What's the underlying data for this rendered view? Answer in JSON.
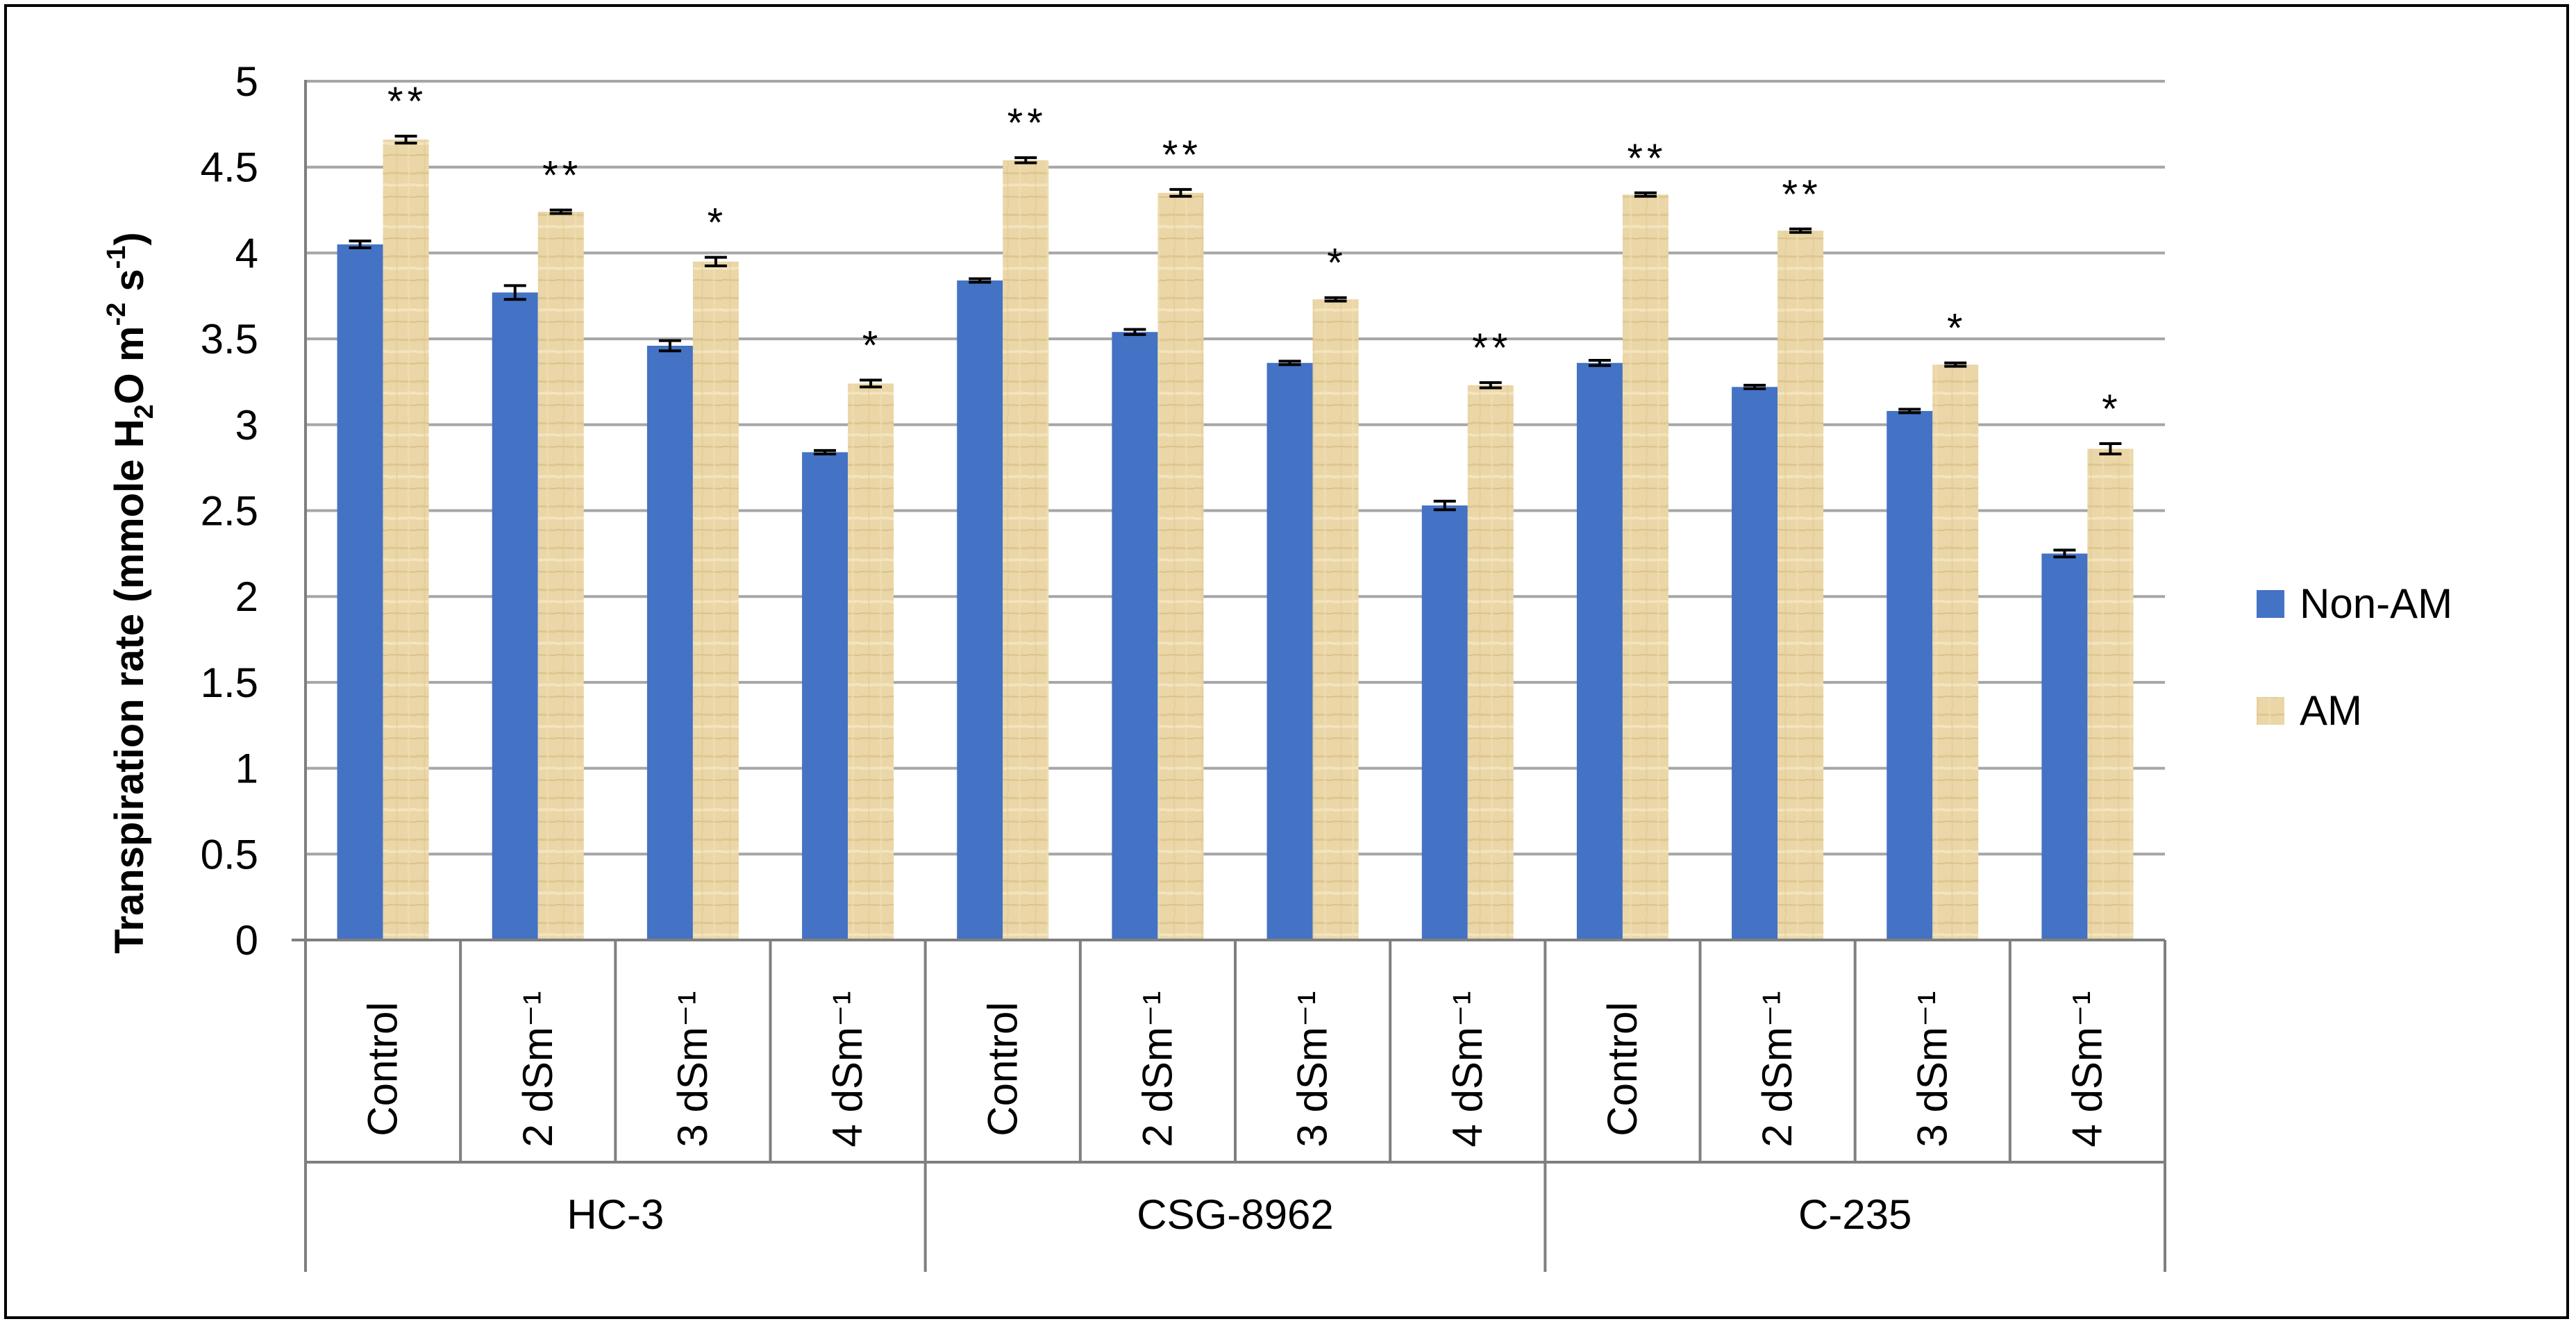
{
  "chart_data": {
    "type": "bar",
    "title": "",
    "ylabel": "Transpiration rate (mmole H2O m-2 s-1)",
    "ylabel_parts": {
      "prefix": "Transpiration rate (mmole H",
      "sub": "2",
      "mid1": "O m",
      "sup1": "-2",
      "mid2": " s",
      "sup2": "-1",
      "suffix": ")"
    },
    "xlabel": "",
    "ylim": [
      0,
      5
    ],
    "yticks": [
      "0",
      "0.5",
      "1",
      "1.5",
      "2",
      "2.5",
      "3",
      "3.5",
      "4",
      "4.5",
      "5"
    ],
    "grid": true,
    "legend_position": "right",
    "groups": [
      "HC-3",
      "CSG-8962",
      "C-235"
    ],
    "categories": [
      "Control",
      "2 dSm⁻¹",
      "3 dSm⁻¹",
      "4 dSm⁻¹",
      "Control",
      "2 dSm⁻¹",
      "3 dSm⁻¹",
      "4 dSm⁻¹",
      "Control",
      "2 dSm⁻¹",
      "3 dSm⁻¹",
      "4 dSm⁻¹"
    ],
    "series": [
      {
        "name": "Non-AM",
        "color": "#4472C4",
        "values": [
          4.05,
          3.77,
          3.46,
          2.84,
          3.84,
          3.54,
          3.36,
          2.53,
          3.36,
          3.22,
          3.08,
          2.25
        ],
        "errors": [
          0.02,
          0.04,
          0.03,
          0.01,
          0.01,
          0.015,
          0.01,
          0.025,
          0.015,
          0.01,
          0.01,
          0.02
        ]
      },
      {
        "name": "AM",
        "color": "#E9D3A0",
        "values": [
          4.66,
          4.24,
          3.95,
          3.24,
          4.54,
          4.35,
          3.73,
          3.23,
          4.34,
          4.13,
          3.35,
          2.86
        ],
        "errors": [
          0.02,
          0.01,
          0.025,
          0.02,
          0.015,
          0.02,
          0.01,
          0.015,
          0.01,
          0.01,
          0.01,
          0.03
        ]
      }
    ],
    "annotations": [
      "**",
      "**",
      "*",
      "*",
      "**",
      "**",
      "*",
      "**",
      "**",
      "**",
      "*",
      "*"
    ]
  }
}
